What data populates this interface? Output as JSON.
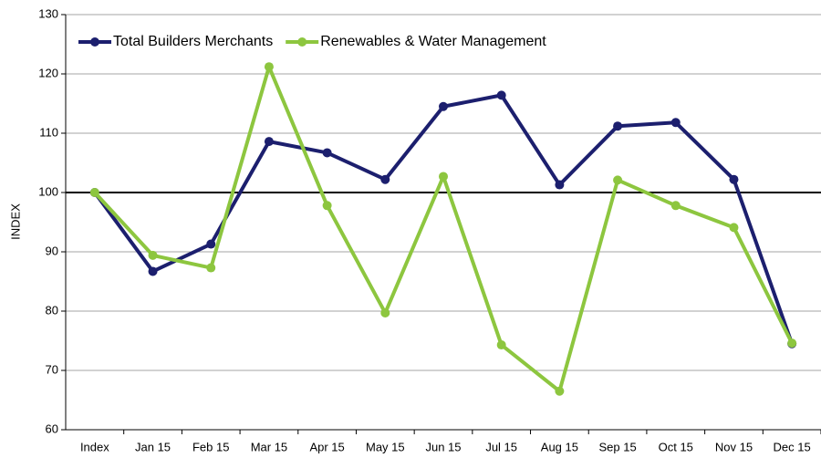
{
  "chart_data": {
    "type": "line",
    "y_label": "INDEX",
    "categories": [
      "Index",
      "Jan 15",
      "Feb 15",
      "Mar 15",
      "Apr 15",
      "May 15",
      "Jun 15",
      "Jul 15",
      "Aug 15",
      "Sep 15",
      "Oct 15",
      "Nov 15",
      "Dec 15"
    ],
    "series": [
      {
        "name": "Total Builders Merchants",
        "color": "#1c1f6e",
        "values": [
          100,
          86.7,
          91.3,
          108.6,
          106.7,
          102.2,
          114.5,
          116.4,
          101.3,
          111.2,
          111.8,
          102.2,
          74.5
        ]
      },
      {
        "name": "Renewables & Water Management",
        "color": "#8dc63f",
        "values": [
          100,
          89.4,
          87.3,
          121.2,
          97.8,
          79.7,
          102.7,
          74.3,
          66.5,
          102.1,
          97.8,
          94.1,
          74.6
        ]
      }
    ],
    "ylim": [
      60,
      130
    ],
    "yticks": [
      60,
      70,
      80,
      90,
      100,
      110,
      120,
      130
    ],
    "reference_line": 100,
    "grid": true,
    "legend": "top-left"
  }
}
